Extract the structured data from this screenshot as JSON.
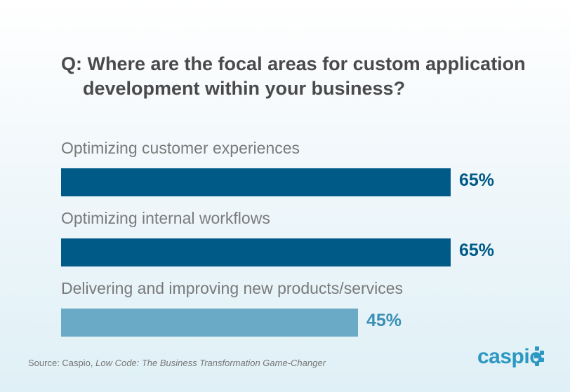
{
  "chart_data": {
    "type": "bar",
    "orientation": "horizontal",
    "title_line1": "Q: Where are the focal areas for custom application",
    "title_line2": "development within your business?",
    "categories": [
      "Optimizing customer experiences",
      "Optimizing internal workflows",
      "Delivering and improving new products/services"
    ],
    "values": [
      65,
      65,
      45
    ],
    "value_labels": [
      "65%",
      "65%",
      "45%"
    ],
    "bar_colors": [
      "#005a87",
      "#005a87",
      "#6aaac6"
    ],
    "label_colors": [
      "#005a87",
      "#005a87",
      "#3a8fb5"
    ],
    "xlabel": "",
    "ylabel": ""
  },
  "source_prefix": "Source: Caspio, ",
  "source_title": "Low Code: The Business Transformation Game-Changer",
  "logo": "caspio"
}
